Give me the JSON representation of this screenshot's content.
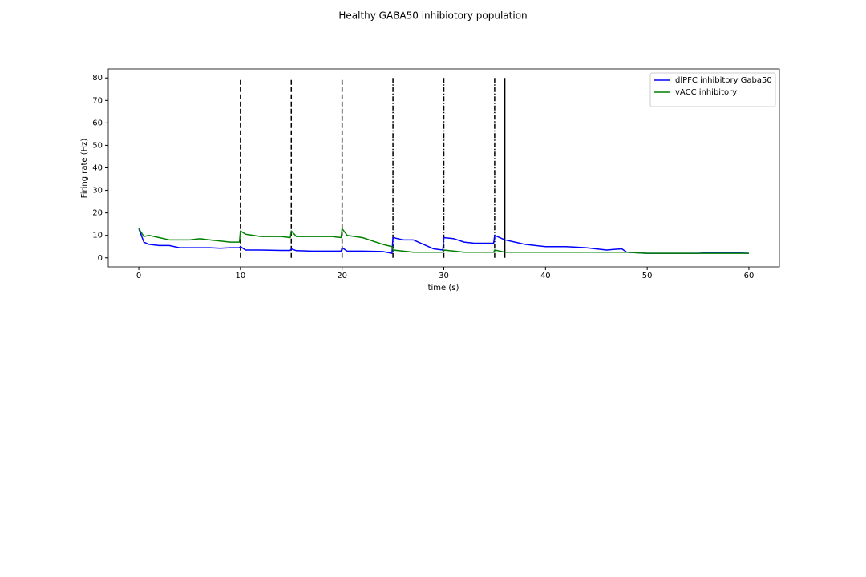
{
  "chart_data": {
    "type": "line",
    "title": "Healthy GABA50 inhibiotory population",
    "xlabel": "time (s)",
    "ylabel": "Firing rate (Hz)",
    "x": [
      0,
      0.5,
      1,
      2,
      3,
      4,
      5,
      6,
      7,
      8,
      9,
      9.9,
      10,
      10.5,
      12,
      14,
      14.9,
      15,
      15.5,
      17,
      19,
      19.9,
      20,
      20.5,
      22,
      24,
      24.9,
      25,
      26,
      27,
      28,
      29,
      29.9,
      30,
      31,
      32,
      33,
      34,
      34.9,
      35,
      36,
      37,
      38,
      39,
      40,
      42,
      44,
      46,
      47.5,
      48,
      50,
      52,
      55,
      57,
      60
    ],
    "series": [
      {
        "name": "dlPFC inhibitory Gaba50",
        "color": "#0000ff",
        "values": [
          13,
          7,
          6,
          5.5,
          5.5,
          4.5,
          4.5,
          4.5,
          4.5,
          4.3,
          4.5,
          4.5,
          5,
          3.5,
          3.5,
          3.3,
          3.3,
          4,
          3.2,
          3,
          3,
          3,
          4.5,
          3,
          3,
          2.8,
          2,
          9,
          8,
          8,
          6,
          4,
          3.5,
          9,
          8.5,
          7,
          6.5,
          6.5,
          6.5,
          10,
          8,
          7,
          6,
          5.5,
          5,
          5,
          4.5,
          3.5,
          4,
          2.5,
          2,
          2,
          2,
          2.5,
          2
        ]
      },
      {
        "name": "vACC inhibitory",
        "color": "#008000",
        "values": [
          13,
          9.5,
          10,
          9,
          8,
          8,
          8,
          8.5,
          8,
          7.5,
          7,
          7,
          12,
          10.5,
          9.5,
          9.5,
          9,
          12,
          9.5,
          9.5,
          9.5,
          9,
          13,
          10,
          9,
          6,
          5,
          3.5,
          3,
          2.5,
          2.5,
          2.5,
          2.5,
          3.5,
          3,
          2.5,
          2.5,
          2.5,
          2.5,
          3.5,
          2.5,
          2.5,
          2.5,
          2.5,
          2.5,
          2.5,
          2.5,
          2.5,
          2.5,
          2.5,
          2,
          2,
          2,
          2,
          2
        ]
      }
    ],
    "vlines": [
      {
        "x": 10,
        "ymin": 0,
        "ymax": 80,
        "style": "dashed",
        "color": "#000000"
      },
      {
        "x": 15,
        "ymin": 0,
        "ymax": 80,
        "style": "dashed",
        "color": "#000000"
      },
      {
        "x": 20,
        "ymin": 0,
        "ymax": 80,
        "style": "dashed",
        "color": "#000000"
      },
      {
        "x": 25,
        "ymin": 0,
        "ymax": 80,
        "style": "dashdot",
        "color": "#000000"
      },
      {
        "x": 30,
        "ymin": 0,
        "ymax": 80,
        "style": "dashdot",
        "color": "#000000"
      },
      {
        "x": 35,
        "ymin": 0,
        "ymax": 80,
        "style": "dashdot",
        "color": "#000000"
      },
      {
        "x": 36,
        "ymin": 0,
        "ymax": 80,
        "style": "solid",
        "color": "#000000"
      }
    ],
    "xlim": [
      -3,
      63
    ],
    "xticks": [
      0,
      10,
      20,
      30,
      40,
      50,
      60
    ],
    "ylim": [
      -4,
      84
    ],
    "yticks": [
      0,
      10,
      20,
      30,
      40,
      50,
      60,
      70,
      80
    ],
    "legend": "upper right",
    "grid": false
  }
}
